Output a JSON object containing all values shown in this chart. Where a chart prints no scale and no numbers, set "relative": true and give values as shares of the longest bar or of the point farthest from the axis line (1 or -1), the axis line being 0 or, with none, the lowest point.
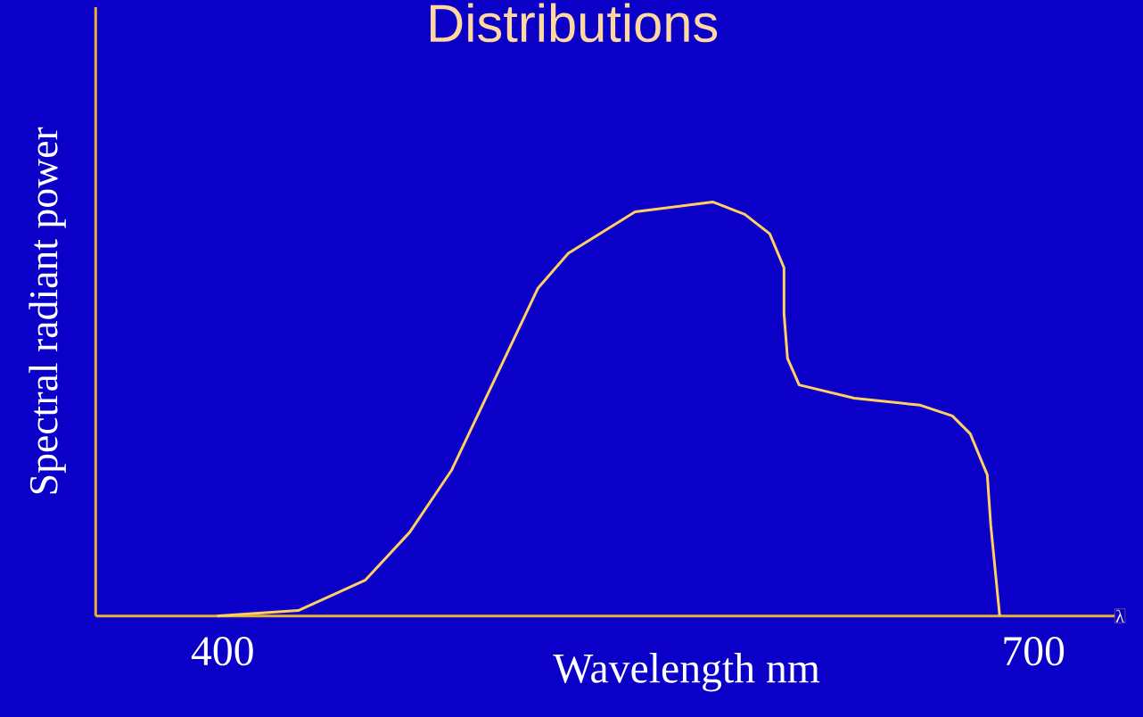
{
  "chart_data": {
    "type": "line",
    "title": "Distributions",
    "xlabel": "Wavelength nm",
    "ylabel": "Spectral radiant power",
    "relative": true,
    "xlim": [
      353,
      730
    ],
    "xticks": [
      400,
      700
    ],
    "color": "#ffd060",
    "x": [
      398.0,
      428.0,
      452.7,
      469.2,
      484.7,
      516.7,
      527.9,
      552.6,
      581.3,
      593.2,
      602.4,
      607.7,
      607.7,
      609.0,
      613.3,
      633.7,
      658.1,
      670.0,
      676.6,
      682.9,
      684.2,
      687.5
    ],
    "values": [
      0,
      0.013,
      0.086,
      0.202,
      0.352,
      0.792,
      0.876,
      0.976,
      1,
      0.97,
      0.923,
      0.841,
      0.73,
      0.622,
      0.558,
      0.526,
      0.509,
      0.483,
      0.44,
      0.341,
      0.219,
      0
    ],
    "annotations": [
      "λ"
    ],
    "grid": false,
    "marker": "none",
    "line_style": "solid"
  }
}
